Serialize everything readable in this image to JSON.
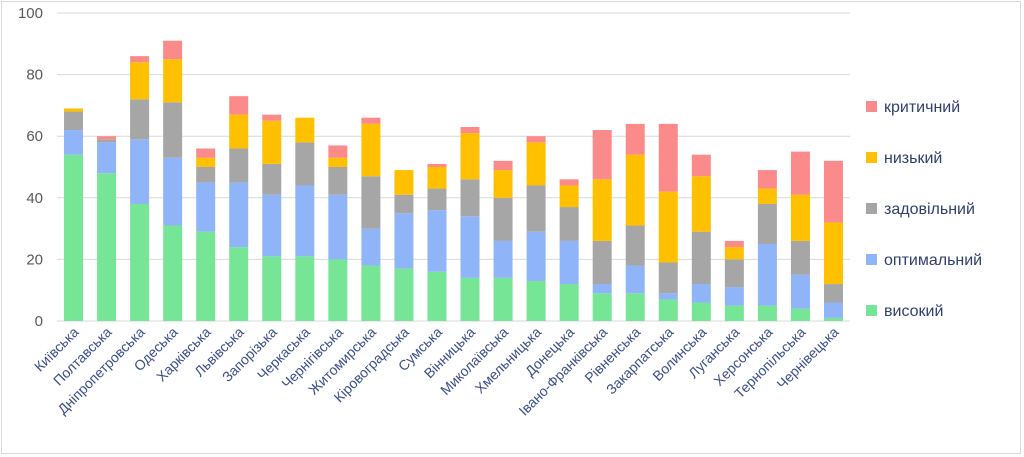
{
  "chart_data": {
    "type": "bar",
    "stacked": true,
    "ylim": [
      0,
      100
    ],
    "yticks": [
      0,
      20,
      40,
      60,
      80,
      100
    ],
    "grid": true,
    "legend_position": "right",
    "categories": [
      "Київська",
      "Полтавська",
      "Дніпропетровська",
      "Одеська",
      "Харківська",
      "Львівська",
      "Запорізька",
      "Черкаська",
      "Чернігівська",
      "Житомирська",
      "Кіровоградська",
      "Сумська",
      "Вінницька",
      "Миколаївська",
      "Хмельницька",
      "Донецька",
      "Івано-Франківська",
      "Рівненська",
      "Закарпатська",
      "Волинська",
      "Луганська",
      "Херсонська",
      "Тернопільська",
      "Чернівецька"
    ],
    "series": [
      {
        "name": "високий",
        "color": "#77e596",
        "values": [
          54,
          48,
          38,
          31,
          29,
          24,
          21,
          21,
          20,
          18,
          17,
          16,
          14,
          14,
          13,
          12,
          9,
          9,
          7,
          6,
          5,
          5,
          4,
          1
        ]
      },
      {
        "name": "оптимальний",
        "color": "#8fb4f7",
        "values": [
          8,
          10,
          21,
          22,
          16,
          21,
          20,
          23,
          21,
          12,
          18,
          20,
          20,
          12,
          16,
          14,
          3,
          9,
          2,
          6,
          6,
          20,
          11,
          5
        ]
      },
      {
        "name": "задовільний",
        "color": "#a6a6a6",
        "values": [
          6,
          1,
          13,
          18,
          5,
          11,
          10,
          14,
          9,
          17,
          6,
          7,
          12,
          14,
          15,
          11,
          14,
          13,
          10,
          17,
          9,
          13,
          11,
          6
        ]
      },
      {
        "name": "низький",
        "color": "#ffc000",
        "values": [
          1,
          0,
          12,
          14,
          3,
          11,
          14,
          8,
          3,
          17,
          8,
          7,
          15,
          9,
          14,
          7,
          20,
          23,
          23,
          18,
          4,
          5,
          15,
          20
        ]
      },
      {
        "name": "критичний",
        "color": "#fb8b8b",
        "values": [
          0,
          1,
          2,
          6,
          3,
          6,
          2,
          0,
          4,
          2,
          0,
          1,
          2,
          3,
          2,
          2,
          16,
          10,
          22,
          7,
          2,
          6,
          14,
          20
        ]
      }
    ]
  }
}
